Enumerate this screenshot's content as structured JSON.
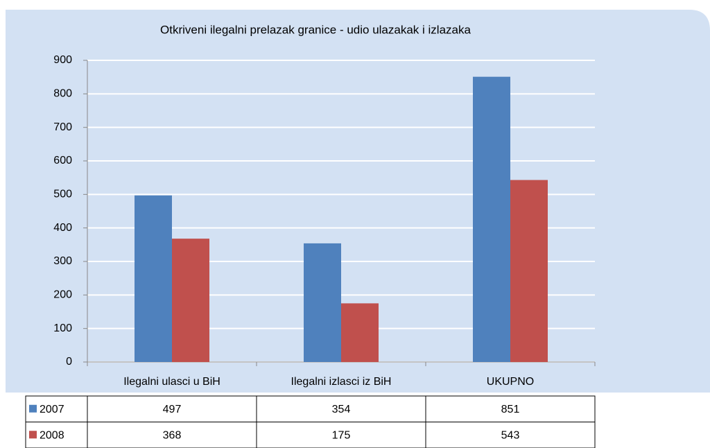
{
  "chart_data": {
    "type": "bar",
    "title": "Otkriveni ilegalni prelazak granice - udio ulazakak i izlazaka",
    "categories": [
      "Ilegalni ulasci u BiH",
      "Ilegalni izlasci iz BiH",
      "UKUPNO"
    ],
    "series": [
      {
        "name": "2007",
        "color": "#4f81bd",
        "values": [
          497,
          354,
          851
        ]
      },
      {
        "name": "2008",
        "color": "#c0504d",
        "values": [
          368,
          175,
          543
        ]
      }
    ],
    "ylim": [
      0,
      900
    ],
    "yticks": [
      0,
      100,
      200,
      300,
      400,
      500,
      600,
      700,
      800,
      900
    ],
    "grid": true,
    "data_table": true
  }
}
